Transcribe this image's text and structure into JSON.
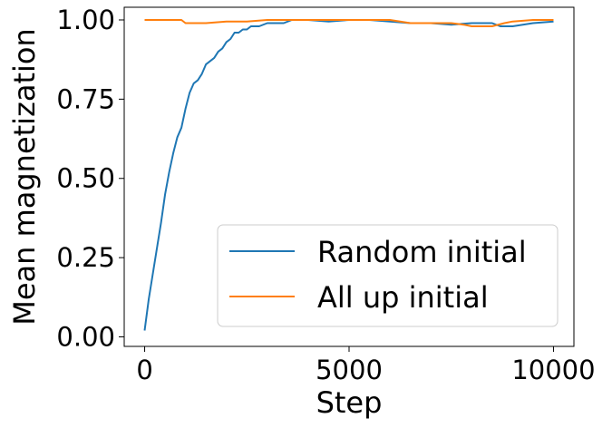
{
  "chart_data": {
    "type": "line",
    "title": "",
    "xlabel": "Step",
    "ylabel": "Mean magnetization",
    "xlim": [
      -500,
      10500
    ],
    "ylim": [
      -0.03,
      1.04
    ],
    "xticks": [
      0,
      5000,
      10000
    ],
    "xtick_labels": [
      "0",
      "5000",
      "10000"
    ],
    "yticks": [
      0.0,
      0.25,
      0.5,
      0.75,
      1.0
    ],
    "ytick_labels": [
      "0.00",
      "0.25",
      "0.50",
      "0.75",
      "1.00"
    ],
    "grid": false,
    "legend_position": "lower-right",
    "series": [
      {
        "name": "Random initial",
        "color": "#1f77b4",
        "x": [
          0,
          100,
          200,
          300,
          400,
          500,
          600,
          700,
          800,
          900,
          1000,
          1100,
          1200,
          1300,
          1400,
          1500,
          1600,
          1700,
          1800,
          1900,
          2000,
          2100,
          2200,
          2300,
          2400,
          2500,
          2600,
          2800,
          3000,
          3200,
          3400,
          3600,
          3800,
          4000,
          4500,
          5000,
          5500,
          6000,
          6500,
          7000,
          7500,
          8000,
          8500,
          8700,
          9000,
          9500,
          10000
        ],
        "y": [
          0.02,
          0.12,
          0.2,
          0.28,
          0.36,
          0.45,
          0.52,
          0.58,
          0.63,
          0.66,
          0.72,
          0.77,
          0.8,
          0.81,
          0.83,
          0.86,
          0.87,
          0.88,
          0.9,
          0.91,
          0.93,
          0.94,
          0.96,
          0.96,
          0.97,
          0.97,
          0.98,
          0.98,
          0.99,
          0.99,
          0.99,
          1.0,
          1.0,
          1.0,
          0.995,
          1.0,
          1.0,
          0.995,
          0.99,
          0.99,
          0.985,
          0.99,
          0.99,
          0.98,
          0.98,
          0.99,
          0.995
        ]
      },
      {
        "name": "All up initial",
        "color": "#ff7f0e",
        "x": [
          0,
          500,
          900,
          1000,
          1500,
          2000,
          2500,
          3000,
          3500,
          4000,
          5000,
          6000,
          6500,
          7000,
          7500,
          7800,
          8000,
          8200,
          8500,
          8800,
          9000,
          9500,
          10000
        ],
        "y": [
          1.0,
          1.0,
          1.0,
          0.99,
          0.99,
          0.995,
          0.995,
          1.0,
          1.0,
          1.0,
          1.0,
          1.0,
          0.99,
          0.99,
          0.99,
          0.985,
          0.98,
          0.98,
          0.98,
          0.99,
          0.995,
          1.0,
          1.0
        ]
      }
    ]
  }
}
